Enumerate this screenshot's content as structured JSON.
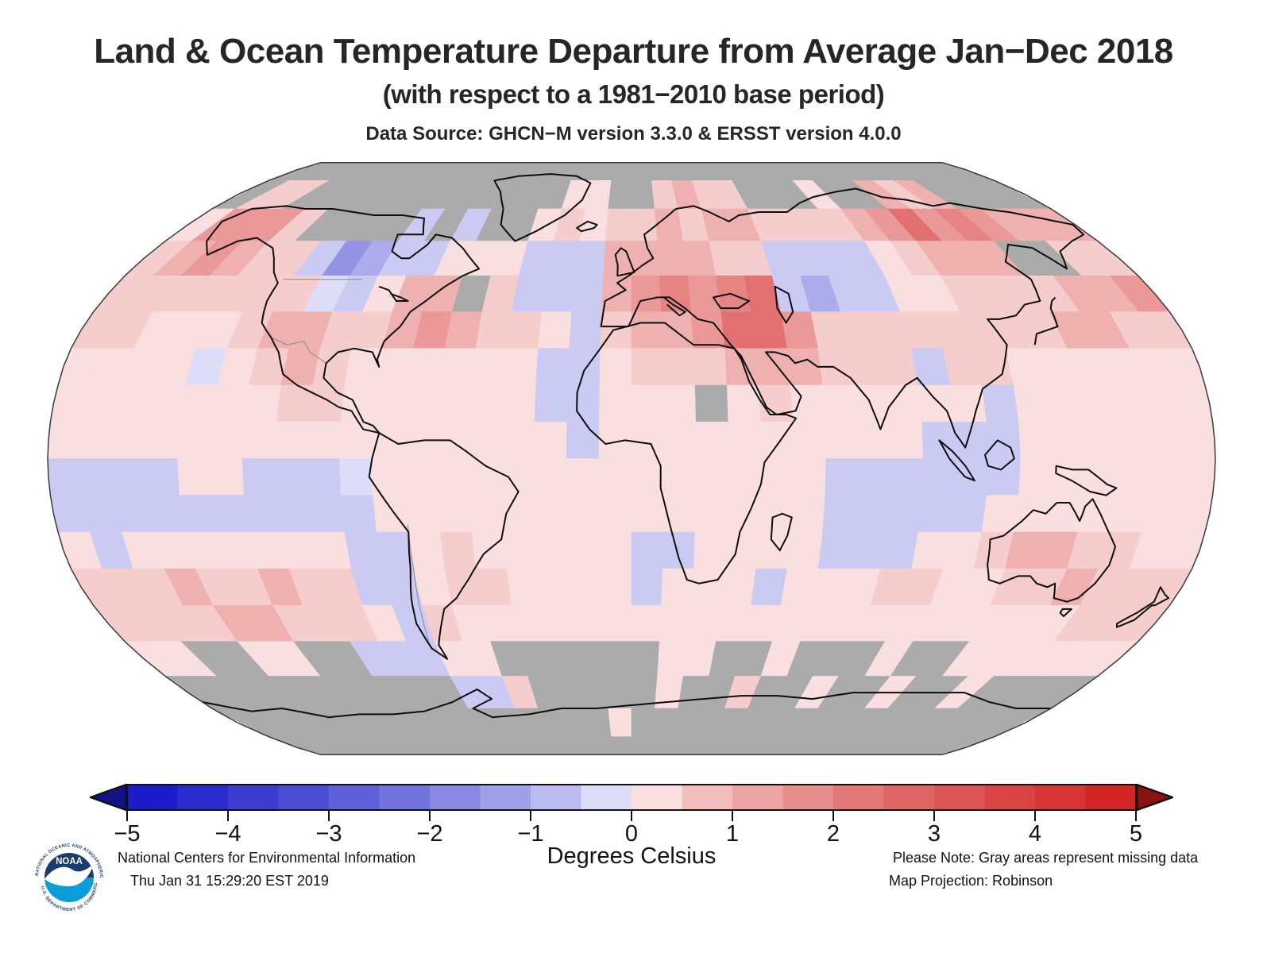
{
  "title": "Land & Ocean Temperature Departure from Average Jan−Dec 2018",
  "subtitle": "(with respect to a 1981−2010 base period)",
  "data_source": "Data Source: GHCN−M version 3.3.0 & ERSST version 4.0.0",
  "footer": {
    "org": "National Centers for Environmental Information",
    "timestamp": "Thu Jan 31 15:29:20 EST 2019",
    "note": "Please Note: Gray areas represent missing data",
    "projection_note": "Map Projection: Robinson",
    "logo": {
      "label": "NOAA",
      "ring_top": "NATIONAL OCEANIC AND ATMOSPHERIC ADMINISTRATION",
      "ring_bottom": "U.S. DEPARTMENT OF COMMERCE"
    }
  },
  "colorbar": {
    "label": "Degrees Celsius",
    "min": -5,
    "max": 5,
    "segment_step": 0.5,
    "ticks": [
      "−5",
      "−4",
      "−3",
      "−2",
      "−1",
      "0",
      "1",
      "2",
      "3",
      "4",
      "5"
    ],
    "tick_values": [
      -5,
      -4,
      -3,
      -2,
      -1,
      0,
      1,
      2,
      3,
      4,
      5
    ],
    "left_arrow_color": "#131388",
    "right_arrow_color": "#8a1212",
    "negative_end_color": "#1414c8",
    "positive_end_color": "#d21e1e",
    "zero_color": "#ffffff"
  },
  "chart_data": {
    "type": "heatmap",
    "title": "Land & Ocean Temperature Departure from Average Jan−Dec 2018",
    "units": "Degrees Celsius",
    "base_period": "1981−2010",
    "projection": "Robinson",
    "value_range": [
      -5,
      5
    ],
    "missing_color": "#ababab",
    "missing_meaning": "missing data",
    "grid_deg": 10,
    "lat_start": 90,
    "lon_start": -180,
    "code_values": {
      "a": -1.5,
      "b": -1.0,
      "c": -0.5,
      "d": -0.25,
      "e": 0.25,
      "f": 0.5,
      "g": 1.0,
      "h": 1.5,
      "i": 2.0,
      "j": 2.5,
      "G": null
    },
    "rows": [
      "GGGGGGGGGGGGGGGGGGGGGGGGGGGGGGGGGGGG",
      "GffGGGGGGGGGGGGeeGGfgffGGGeGGgfgGGGG",
      "ehhhfGGGGcGcGGefeffgfggffffghjhihggg",
      "fghgffcabcceeecccggggffccccefgggGGff",
      "fffffffdceggGfcccghihijcbcceeffffggh",
      "ffeeefggffghgffecfgghjjhffffffffggff",
      "eeeedefgfeeeeeeccefffgggfffcffeeeeee",
      "eeeeeeeffeeeeeecceeeGefeeeeeeceeeeee",
      "eeeeeeeeeeeeeeeeceeeeeeeeeeccceeeeee",
      "cccceecccdeeeeeeeeeeeeeecccccceeeeee",
      "cccccccccceeeeeeeeeeeeeeccccceeeeeee",
      "eceeeeeeeccefeeeeecceeeeccceefggffee",
      "fffgffgffcceffeeeeceeeceeeffeeffgfff",
      "ffffggfffecfeeeeeeeeeeeeeeeeeeeeefff",
      "eeGGeeGGccceeGGGGGGeeGGeGGGeGGeeeeee",
      "GGGGGGGGGGGccfGGGGGeGGfGGeGGeGGeGGGG",
      "GGGGGGGGGGGGGGGGGeGGGGGGGGGGGGGGGGGG",
      "GGGGGGGGGGGGGGGGGGGGGGGGGGGGGGGGGGGG"
    ]
  }
}
